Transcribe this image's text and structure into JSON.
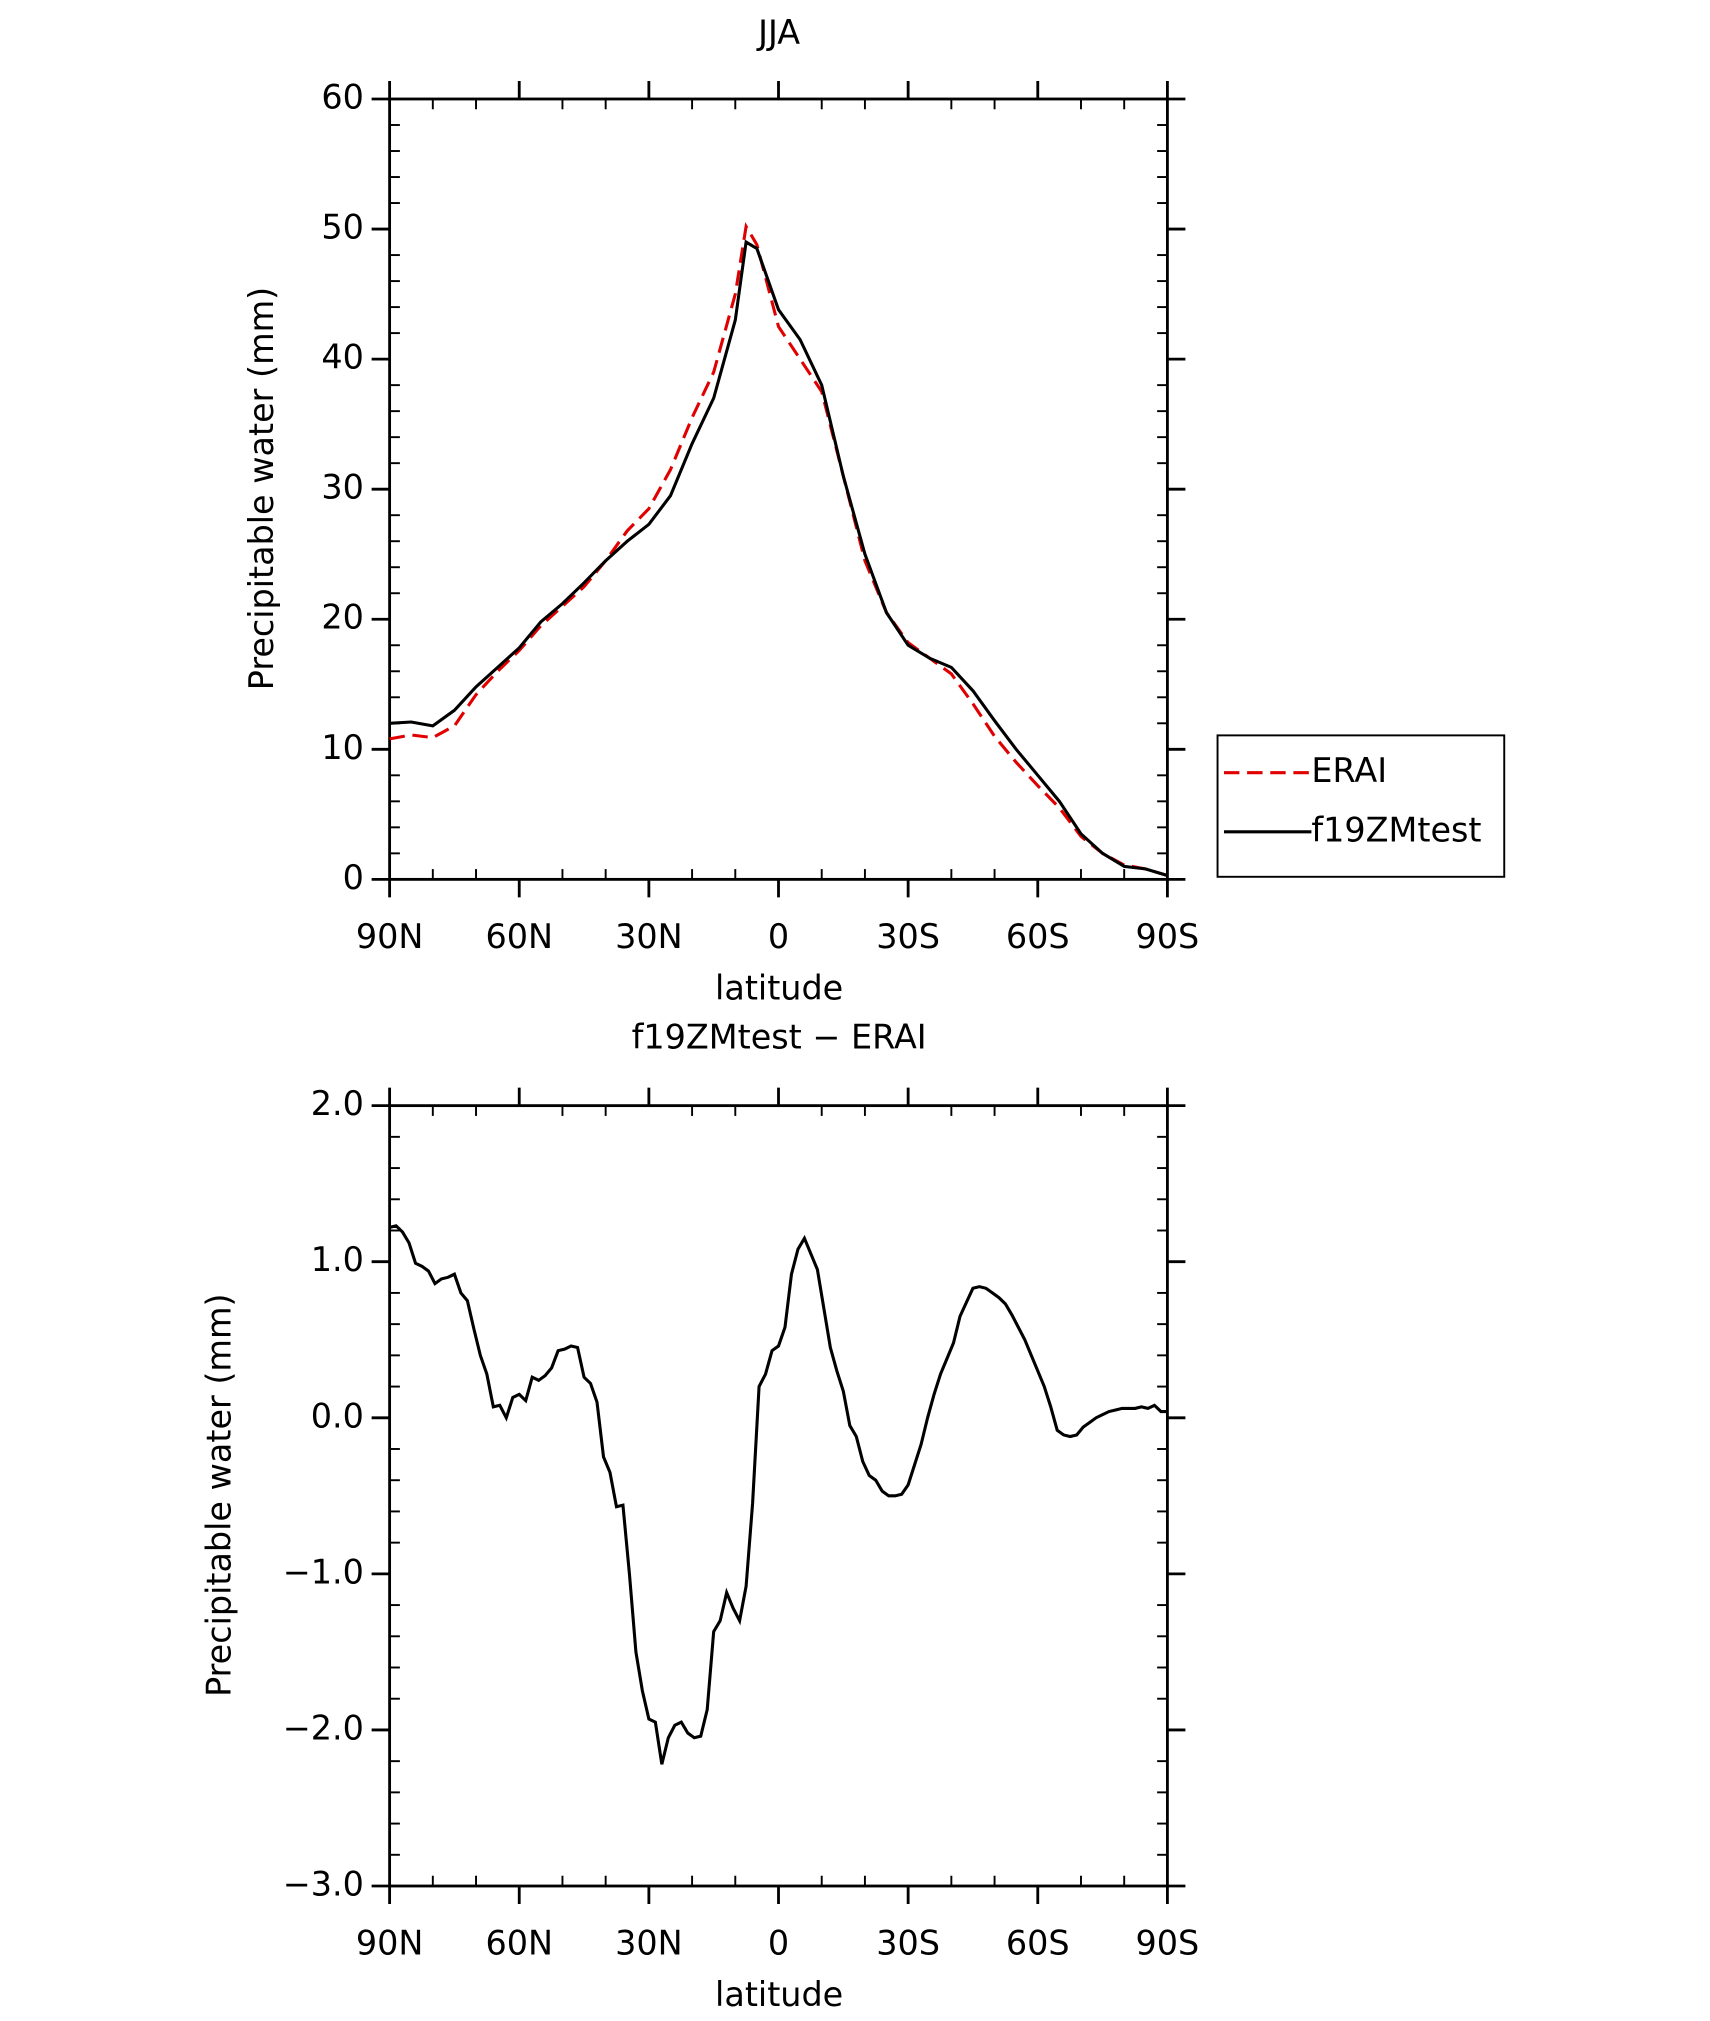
{
  "chart_data": [
    {
      "type": "line",
      "title": "JJA",
      "xlabel": "latitude",
      "ylabel": "Precipitable water (mm)",
      "x": [
        90,
        85,
        80,
        75,
        70,
        65,
        60,
        55,
        50,
        45,
        40,
        35,
        30,
        25,
        20,
        15,
        10,
        7.5,
        5,
        0,
        -5,
        -10,
        -15,
        -20,
        -25,
        -30,
        -35,
        -40,
        -45,
        -50,
        -55,
        -60,
        -65,
        -70,
        -75,
        -80,
        -85,
        -90
      ],
      "series": [
        {
          "name": "ERAI",
          "color": "#e00000",
          "style": "dashed",
          "values": [
            10.8,
            11.1,
            10.9,
            11.8,
            14.2,
            16,
            17.6,
            19.5,
            21,
            22.5,
            24.5,
            26.8,
            28.5,
            31.5,
            35.5,
            39,
            45,
            50.2,
            48.8,
            42.5,
            40,
            37.5,
            31,
            24.5,
            20.5,
            18.2,
            17,
            15.8,
            13.5,
            11,
            9,
            7.2,
            5.5,
            3.3,
            2,
            1.1,
            0.8,
            0.3
          ]
        },
        {
          "name": "f19ZMtest",
          "color": "#000000",
          "style": "solid",
          "values": [
            12,
            12.1,
            11.8,
            13,
            14.8,
            16.3,
            17.8,
            19.8,
            21.2,
            22.8,
            24.5,
            26,
            27.3,
            29.5,
            33.5,
            37,
            43,
            49,
            48.5,
            43.8,
            41.5,
            38,
            31,
            25,
            20.5,
            18,
            17,
            16.3,
            14.5,
            12.2,
            10,
            8,
            6,
            3.5,
            2,
            1,
            0.8,
            0.3
          ]
        }
      ],
      "xlim": [
        90,
        -90
      ],
      "xticks": [
        {
          "value": 90,
          "label": "90N"
        },
        {
          "value": 60,
          "label": "60N"
        },
        {
          "value": 30,
          "label": "30N"
        },
        0,
        {
          "value": -30,
          "label": "30S"
        },
        {
          "value": -60,
          "label": "60S"
        },
        {
          "value": -90,
          "label": "90S"
        }
      ],
      "ylim": [
        0,
        60
      ],
      "yticks": [
        0,
        10,
        20,
        30,
        40,
        50,
        60
      ],
      "legend": "right"
    },
    {
      "type": "line",
      "title": "f19ZMtest − ERAI",
      "xlabel": "latitude",
      "ylabel": "Precipitable water (mm)",
      "color": "#000000",
      "x": [
        90,
        88.5,
        87,
        85.5,
        84,
        82.5,
        81,
        79.5,
        78,
        76.5,
        75,
        73.5,
        72,
        70.5,
        69,
        67.5,
        66,
        64.5,
        63,
        61.5,
        60,
        58.5,
        57,
        55.5,
        54,
        52.5,
        51,
        49.5,
        48,
        46.5,
        45,
        43.5,
        42,
        40.5,
        39,
        37.5,
        36,
        34.5,
        33,
        31.5,
        30,
        28.5,
        27,
        25.5,
        24,
        22.5,
        21,
        19.5,
        18,
        16.5,
        15,
        13.5,
        12,
        10.5,
        9,
        7.5,
        6,
        4.5,
        3,
        1.5,
        0,
        -1.5,
        -3,
        -4.5,
        -6,
        -7.5,
        -9,
        -10.5,
        -12,
        -13.5,
        -15,
        -16.5,
        -18,
        -19.5,
        -21,
        -22.5,
        -24,
        -25.5,
        -27,
        -28.5,
        -30,
        -31.5,
        -33,
        -34.5,
        -36,
        -37.5,
        -39,
        -40.5,
        -42,
        -43.5,
        -45,
        -46.5,
        -48,
        -49.5,
        -51,
        -52.5,
        -54,
        -55.5,
        -57,
        -58.5,
        -60,
        -61.5,
        -63,
        -64.5,
        -66,
        -67.5,
        -69,
        -70.5,
        -72,
        -73.5,
        -75,
        -76.5,
        -78,
        -79.5,
        -81,
        -82.5,
        -84,
        -85.5,
        -87,
        -88.5,
        -90
      ],
      "values": [
        1.22,
        1.23,
        1.19,
        1.12,
        0.99,
        0.97,
        0.94,
        0.86,
        0.89,
        0.9,
        0.92,
        0.8,
        0.75,
        0.57,
        0.4,
        0.28,
        0.07,
        0.08,
        0.0,
        0.13,
        0.15,
        0.11,
        0.26,
        0.24,
        0.27,
        0.32,
        0.43,
        0.44,
        0.46,
        0.45,
        0.26,
        0.22,
        0.1,
        -0.25,
        -0.35,
        -0.57,
        -0.56,
        -1.0,
        -1.5,
        -1.75,
        -1.93,
        -1.95,
        -2.22,
        -2.05,
        -1.97,
        -1.95,
        -2.02,
        -2.05,
        -2.04,
        -1.87,
        -1.37,
        -1.3,
        -1.12,
        -1.22,
        -1.3,
        -1.08,
        -0.55,
        0.2,
        0.28,
        0.43,
        0.46,
        0.58,
        0.92,
        1.08,
        1.15,
        1.05,
        0.95,
        0.7,
        0.45,
        0.3,
        0.17,
        -0.05,
        -0.12,
        -0.28,
        -0.37,
        -0.4,
        -0.47,
        -0.5,
        -0.5,
        -0.49,
        -0.43,
        -0.3,
        -0.17,
        0.0,
        0.15,
        0.28,
        0.38,
        0.48,
        0.65,
        0.74,
        0.83,
        0.84,
        0.83,
        0.8,
        0.77,
        0.73,
        0.66,
        0.58,
        0.5,
        0.4,
        0.3,
        0.2,
        0.07,
        -0.08,
        -0.11,
        -0.12,
        -0.11,
        -0.06,
        -0.03,
        0.0,
        0.02,
        0.04,
        0.05,
        0.06,
        0.06,
        0.06,
        0.07,
        0.06,
        0.08,
        0.04,
        0.04
      ],
      "xlim": [
        90,
        -90
      ],
      "xticks": [
        {
          "value": 90,
          "label": "90N"
        },
        {
          "value": 60,
          "label": "60N"
        },
        {
          "value": 30,
          "label": "30N"
        },
        0,
        {
          "value": -30,
          "label": "30S"
        },
        {
          "value": -60,
          "label": "60S"
        },
        {
          "value": -90,
          "label": "90S"
        }
      ],
      "ylim": [
        -3,
        2
      ],
      "yticks": [
        {
          "value": -3,
          "label": "−3.0"
        },
        {
          "value": -2,
          "label": "−2.0"
        },
        {
          "value": -1,
          "label": "−1.0"
        },
        {
          "value": 0,
          "label": "0.0"
        },
        {
          "value": 1,
          "label": "1.0"
        },
        {
          "value": 2,
          "label": "2.0"
        }
      ]
    }
  ]
}
